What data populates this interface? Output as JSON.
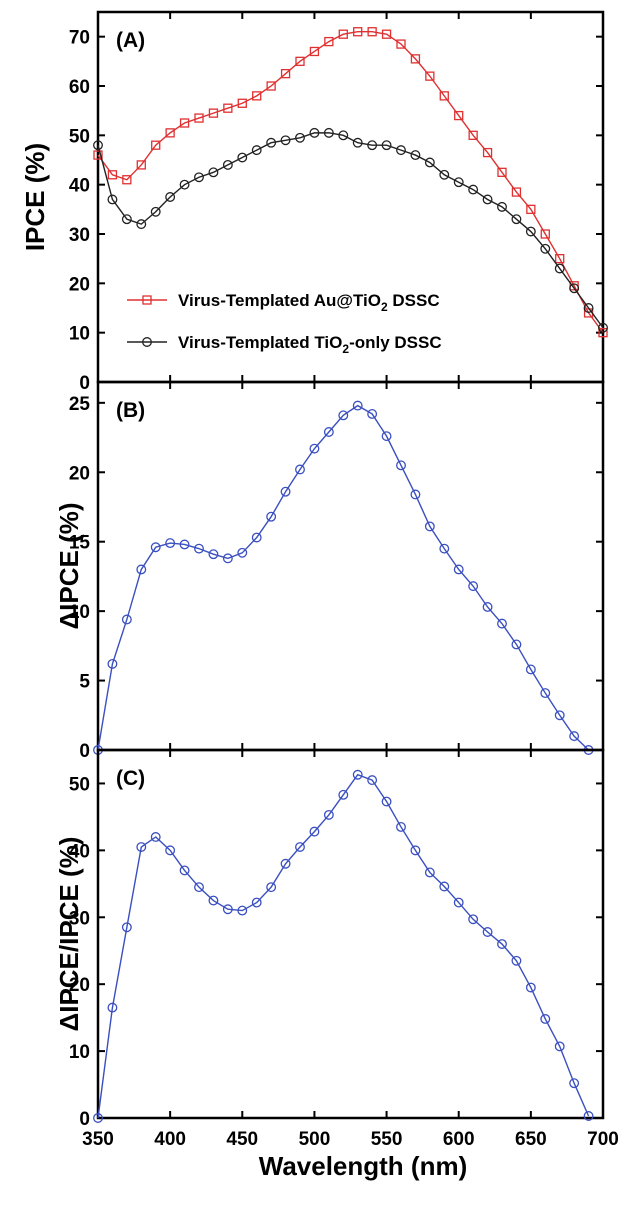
{
  "chart_data": [
    {
      "type": "line",
      "panel_label": "(A)",
      "ylabel": "IPCE (%)",
      "ylim": [
        0,
        75
      ],
      "yticks": [
        0,
        10,
        20,
        30,
        40,
        50,
        60,
        70
      ],
      "xlim": [
        350,
        700
      ],
      "legend_position": "bottom-left",
      "series": [
        {
          "name": "Virus-Templated Au@TiO2 DSSC",
          "name_main": "Virus-Templated Au@TiO",
          "name_sub": "2",
          "name_tail": " DSSC",
          "color": "#e03030",
          "marker": "square",
          "x": [
            350,
            360,
            370,
            380,
            390,
            400,
            410,
            420,
            430,
            440,
            450,
            460,
            470,
            480,
            490,
            500,
            510,
            520,
            530,
            540,
            550,
            560,
            570,
            580,
            590,
            600,
            610,
            620,
            630,
            640,
            650,
            660,
            670,
            680,
            690,
            700
          ],
          "values": [
            46,
            42,
            41,
            44,
            48,
            50.5,
            52.5,
            53.5,
            54.5,
            55.5,
            56.5,
            58,
            60,
            62.5,
            65,
            67,
            69,
            70.5,
            71,
            71,
            70.5,
            68.5,
            65.5,
            62,
            58,
            54,
            50,
            46.5,
            42.5,
            38.5,
            35,
            30,
            25,
            19.5,
            14,
            10
          ]
        },
        {
          "name": "Virus-Templated TiO2-only DSSC",
          "name_main": "Virus-Templated TiO",
          "name_sub": "2",
          "name_tail": "-only DSSC",
          "color": "#222222",
          "marker": "circle",
          "x": [
            350,
            360,
            370,
            380,
            390,
            400,
            410,
            420,
            430,
            440,
            450,
            460,
            470,
            480,
            490,
            500,
            510,
            520,
            530,
            540,
            550,
            560,
            570,
            580,
            590,
            600,
            610,
            620,
            630,
            640,
            650,
            660,
            670,
            680,
            690,
            700
          ],
          "values": [
            48,
            37,
            33,
            32,
            34.5,
            37.5,
            40,
            41.5,
            42.5,
            44,
            45.5,
            47,
            48.5,
            49,
            49.5,
            50.5,
            50.5,
            50,
            48.5,
            48,
            48,
            47,
            46,
            44.5,
            42,
            40.5,
            39,
            37,
            35.5,
            33,
            30.5,
            27,
            23,
            19,
            15,
            11
          ]
        }
      ]
    },
    {
      "type": "line",
      "panel_label": "(B)",
      "ylabel": "ΔIPCE (%)",
      "ylim": [
        0,
        26.5
      ],
      "yticks": [
        0,
        5,
        10,
        15,
        20,
        25
      ],
      "xlim": [
        350,
        700
      ],
      "series": [
        {
          "color": "#3a4fc0",
          "marker": "circle",
          "x": [
            350,
            360,
            370,
            380,
            390,
            400,
            410,
            420,
            430,
            440,
            450,
            460,
            470,
            480,
            490,
            500,
            510,
            520,
            530,
            540,
            550,
            560,
            570,
            580,
            590,
            600,
            610,
            620,
            630,
            640,
            650,
            660,
            670,
            680,
            690
          ],
          "values": [
            0,
            6.2,
            9.4,
            13,
            14.6,
            14.9,
            14.8,
            14.5,
            14.1,
            13.8,
            14.2,
            15.3,
            16.8,
            18.6,
            20.2,
            21.7,
            22.9,
            24.1,
            24.8,
            24.2,
            22.6,
            20.5,
            18.4,
            16.1,
            14.5,
            13,
            11.8,
            10.3,
            9.1,
            7.6,
            5.8,
            4.1,
            2.5,
            1,
            0
          ]
        }
      ]
    },
    {
      "type": "line",
      "panel_label": "(C)",
      "ylabel": "ΔIPCE/IPCE (%)",
      "ylim": [
        0,
        55
      ],
      "yticks": [
        0,
        10,
        20,
        30,
        40,
        50
      ],
      "xlim": [
        350,
        700
      ],
      "xticks": [
        350,
        400,
        450,
        500,
        550,
        600,
        650,
        700
      ],
      "xlabel": "Wavelength (nm)",
      "series": [
        {
          "color": "#3a4fc0",
          "marker": "circle",
          "x": [
            350,
            360,
            370,
            380,
            390,
            400,
            410,
            420,
            430,
            440,
            450,
            460,
            470,
            480,
            490,
            500,
            510,
            520,
            530,
            540,
            550,
            560,
            570,
            580,
            590,
            600,
            610,
            620,
            630,
            640,
            650,
            660,
            670,
            680,
            690
          ],
          "values": [
            0,
            16.5,
            28.5,
            40.5,
            42,
            40,
            37,
            34.5,
            32.5,
            31.2,
            31,
            32.2,
            34.5,
            38,
            40.5,
            42.8,
            45.3,
            48.3,
            51.3,
            50.5,
            47.3,
            43.5,
            40,
            36.7,
            34.6,
            32.2,
            29.7,
            27.8,
            26,
            23.5,
            19.5,
            14.8,
            10.7,
            5.2,
            0.3
          ]
        }
      ]
    }
  ]
}
